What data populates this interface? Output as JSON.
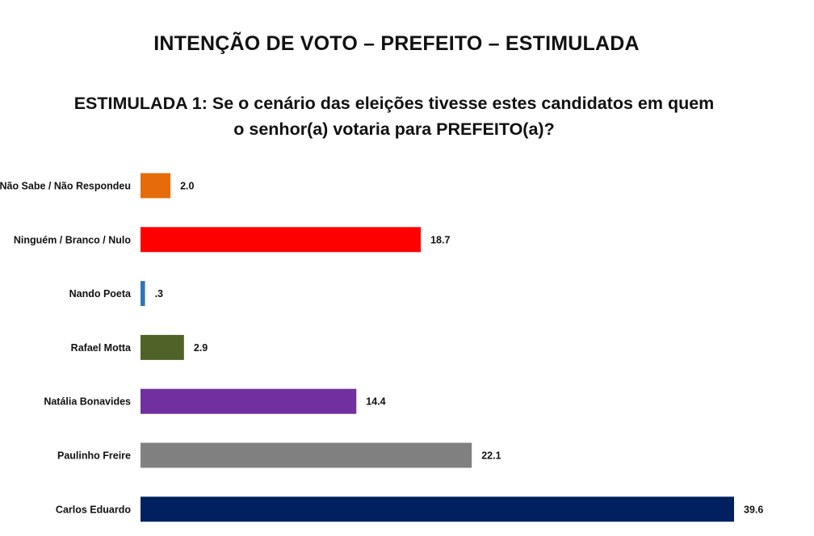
{
  "chart_data": {
    "type": "bar",
    "orientation": "horizontal",
    "title": "INTENÇÃO DE VOTO – PREFEITO – ESTIMULADA",
    "subtitle": "ESTIMULADA 1: Se o cenário das eleições tivesse estes candidatos em quem o senhor(a) votaria para PREFEITO(a)?",
    "categories": [
      "Não Sabe / Não Respondeu",
      "Ninguém / Branco / Nulo",
      "Nando Poeta",
      "Rafael Motta",
      "Natália Bonavides",
      "Paulinho Freire",
      "Carlos Eduardo"
    ],
    "values": [
      2.0,
      18.7,
      0.3,
      2.9,
      14.4,
      22.1,
      39.6
    ],
    "value_labels": [
      "2.0",
      "18.7",
      ".3",
      "2.9",
      "14.4",
      "22.1",
      "39.6"
    ],
    "colors": [
      "#E46C0A",
      "#FF0000",
      "#2E75B6",
      "#4F6228",
      "#7030A0",
      "#808080",
      "#002060"
    ],
    "xlim": [
      0,
      39.6
    ],
    "grid": false,
    "legend": "none"
  }
}
